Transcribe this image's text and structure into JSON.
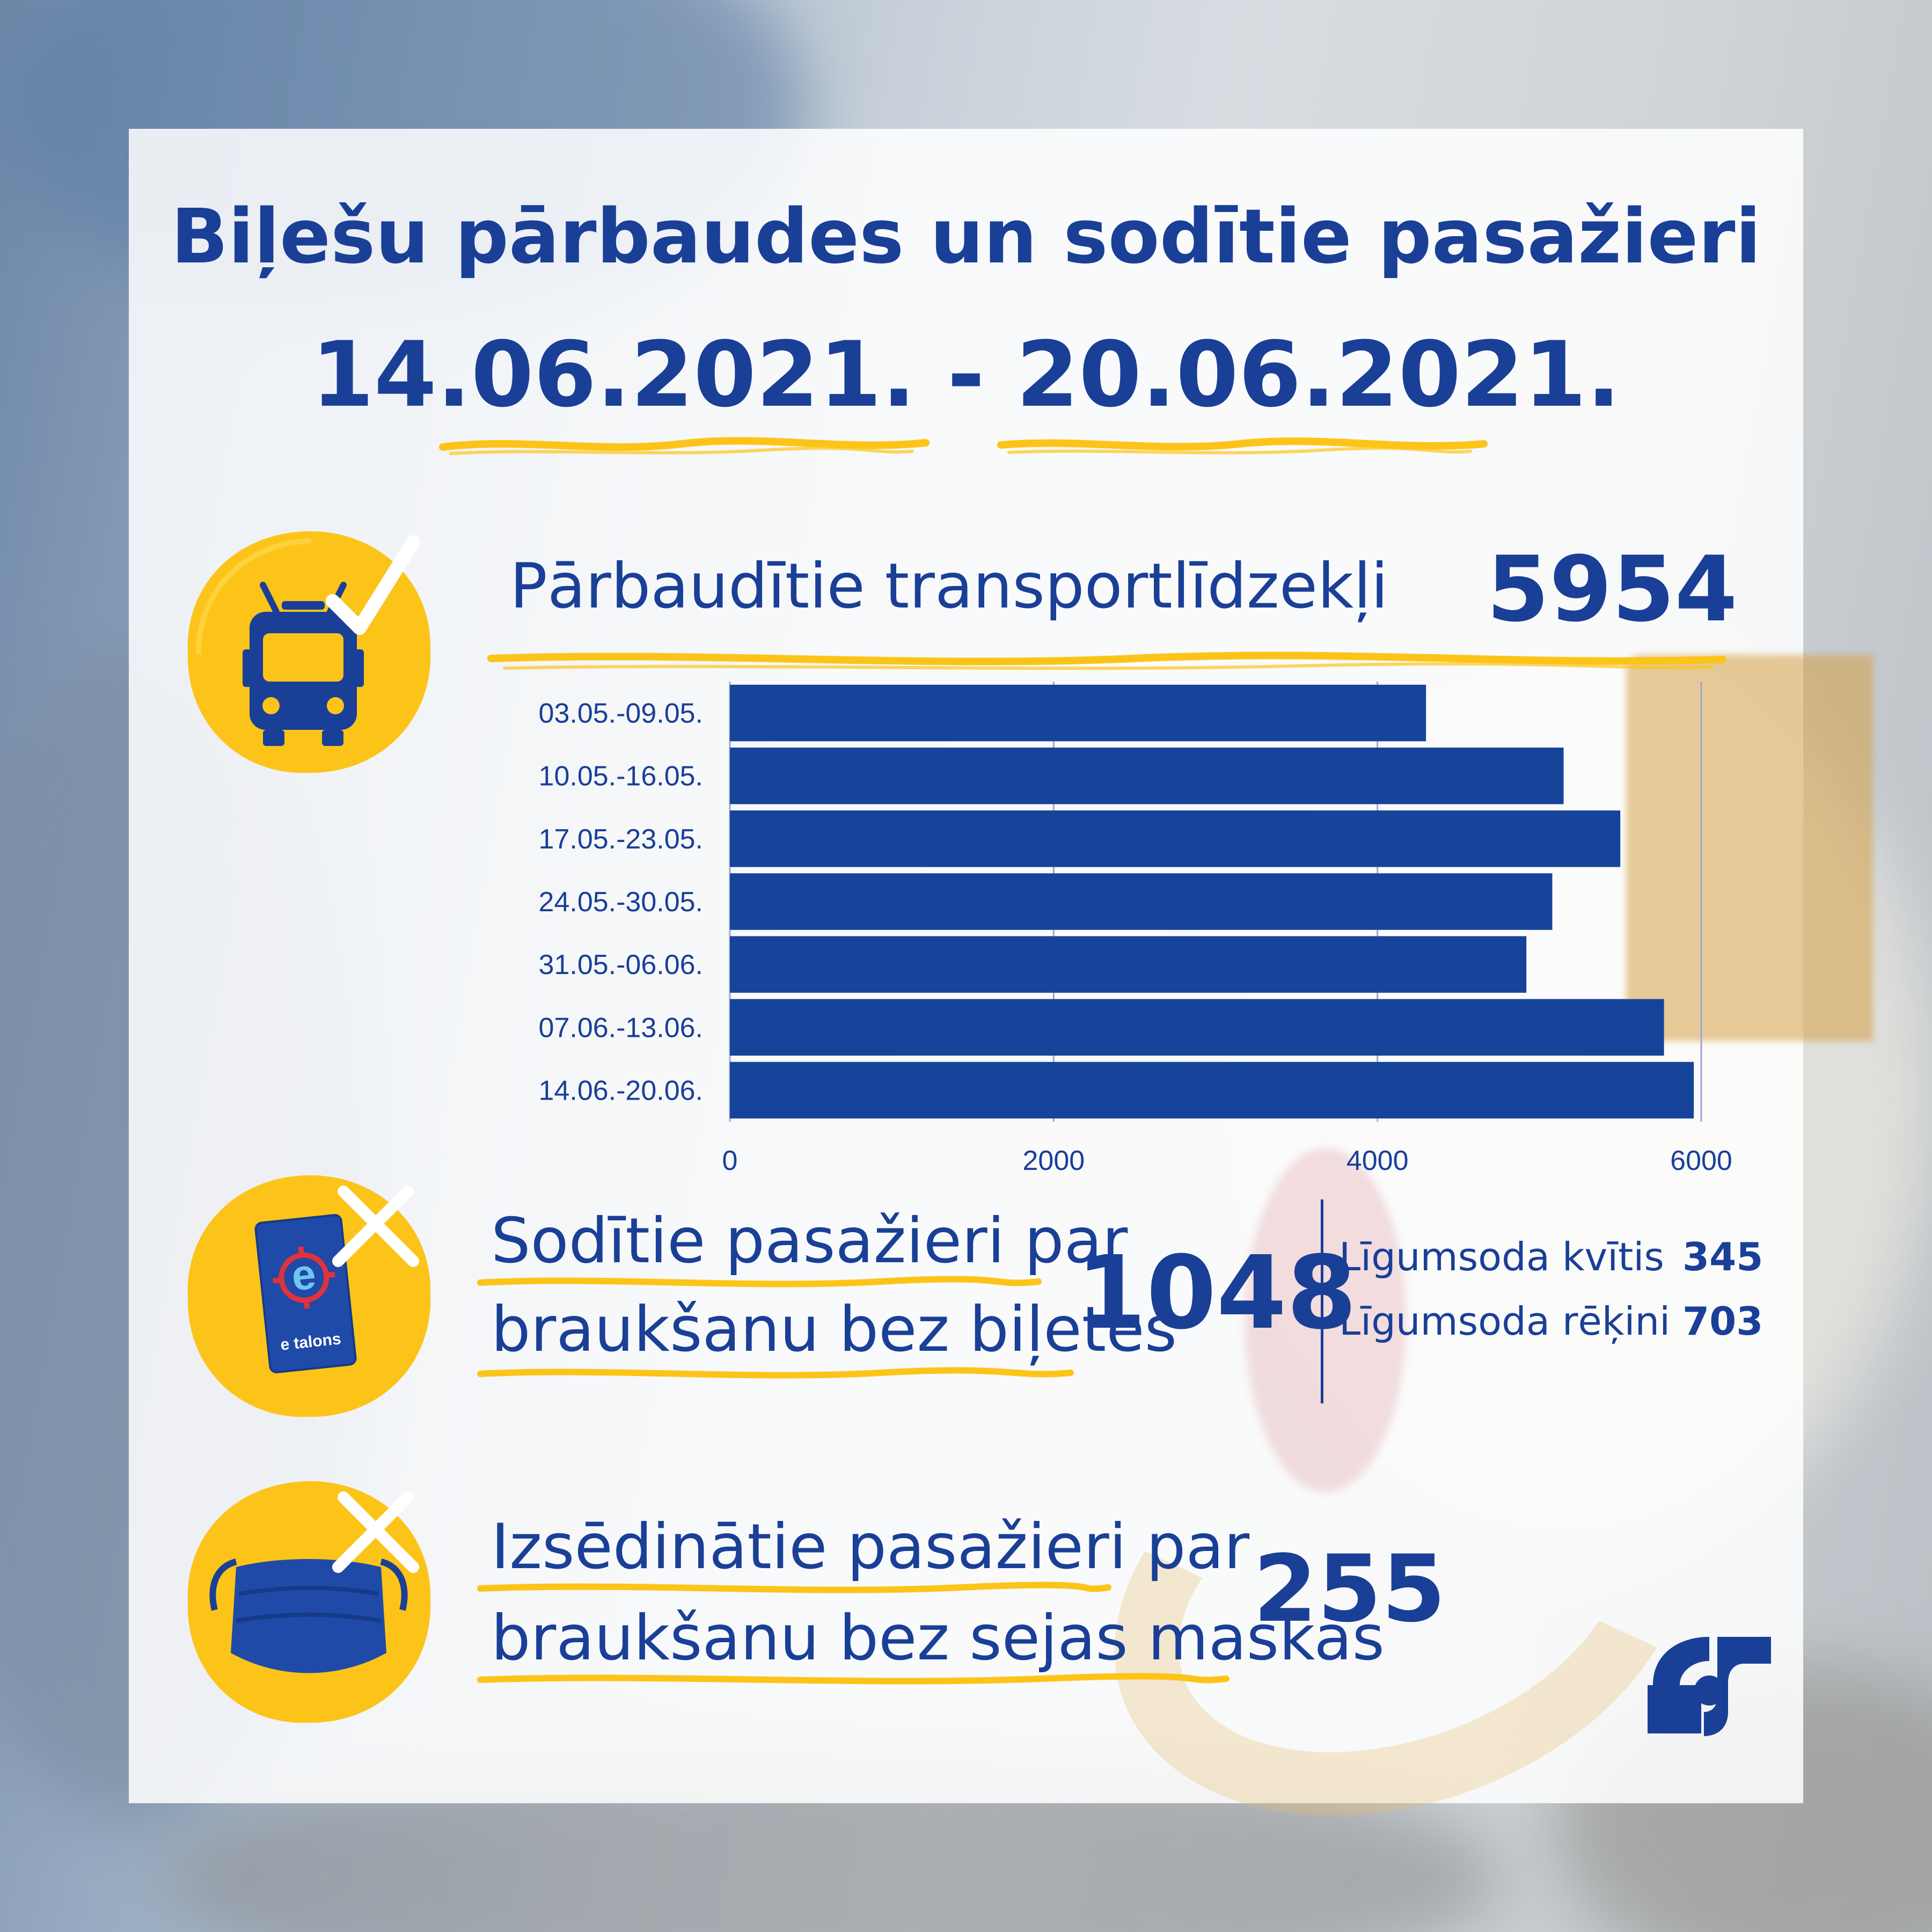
{
  "title": {
    "line1": "Biļešu pārbaudes un sodītie pasažieri",
    "line2": "14.06.2021. - 20.06.2021."
  },
  "vehicles": {
    "label": "Pārbaudītie transportlīdzekļi",
    "value": "5954"
  },
  "chart_data": {
    "type": "bar",
    "orientation": "horizontal",
    "categories": [
      "03.05.-09.05.",
      "10.05.-16.05.",
      "17.05.-23.05.",
      "24.05.-30.05.",
      "31.05.-06.06.",
      "07.06.-13.06.",
      "14.06.-20.06."
    ],
    "values": [
      4300,
      5150,
      5500,
      5080,
      4920,
      5770,
      5954
    ],
    "xlim": [
      0,
      6000
    ],
    "ticks": [
      "0",
      "2000",
      "4000",
      "6000"
    ],
    "tick_values": [
      0,
      2000,
      4000,
      6000
    ],
    "title": "",
    "xlabel": "",
    "ylabel": "",
    "bar_color": "#16449a"
  },
  "fined": {
    "label_line1": "Sodītie pasažieri par",
    "label_line2": "braukšanu bez biļetes",
    "value": "1048",
    "breakdown": [
      {
        "label": "Līgumsoda kvītis",
        "value": "345"
      },
      {
        "label": "Līgumsoda rēķini",
        "value": "703"
      }
    ],
    "card_brand": "e talons"
  },
  "masks": {
    "label_line1": "Izsēdinātie pasažieri par",
    "label_line2": "braukšanu bez sejas maskas",
    "value": "255"
  },
  "colors": {
    "accent": "#1a3f97",
    "yellow": "#fcc419",
    "bar": "#16449a"
  }
}
